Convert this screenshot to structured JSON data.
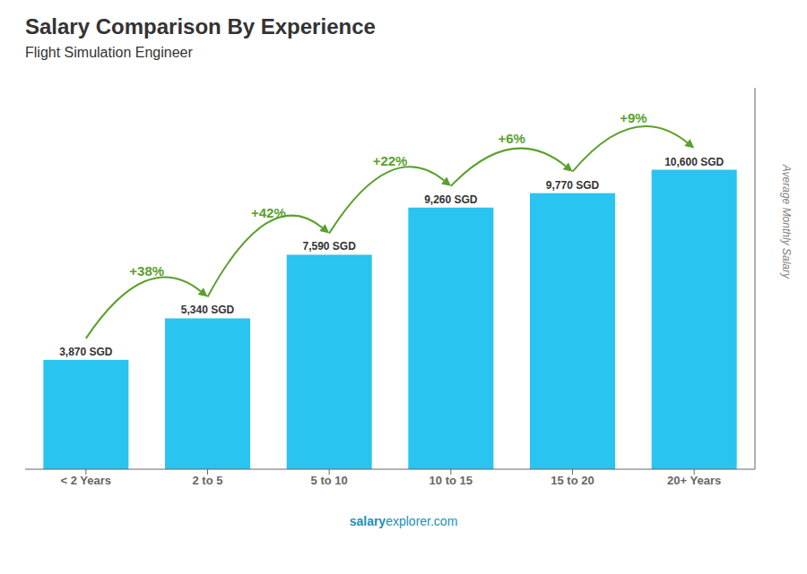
{
  "chart_data": {
    "type": "bar",
    "title": "Salary Comparison By Experience",
    "subtitle": "Flight Simulation Engineer",
    "categories": [
      "< 2 Years",
      "2 to 5",
      "5 to 10",
      "10 to 15",
      "15 to 20",
      "20+ Years"
    ],
    "values": [
      3870,
      5340,
      7590,
      9260,
      9770,
      10600
    ],
    "value_labels": [
      "3,870 SGD",
      "5,340 SGD",
      "7,590 SGD",
      "9,260 SGD",
      "9,770 SGD",
      "10,600 SGD"
    ],
    "data_labels": true,
    "color": "#29c4f0",
    "ylim": [
      0,
      13500
    ],
    "ylabel": "Average Monthly Salary",
    "tick_labels": "x",
    "grid": false,
    "annotations": [
      "+38%",
      "+42%",
      "+22%",
      "+6%",
      "+9%"
    ],
    "footer": [
      "salary",
      "explorer.com"
    ]
  }
}
